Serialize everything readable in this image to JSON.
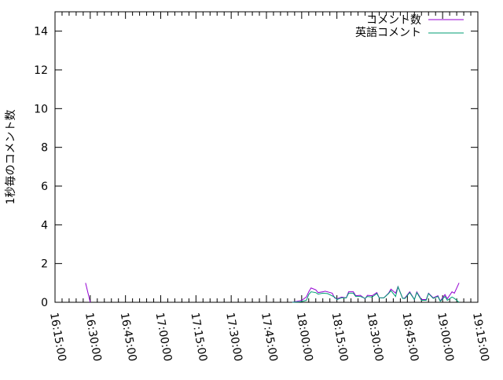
{
  "chart_data": {
    "type": "line",
    "title": "",
    "xlabel": "",
    "ylabel": "1秒毎のコメント数",
    "xlim": [
      "16:15:00",
      "19:15:00"
    ],
    "ylim": [
      0,
      15
    ],
    "x_ticks": [
      "16:15:00",
      "16:30:00",
      "16:45:00",
      "17:00:00",
      "17:15:00",
      "17:30:00",
      "17:45:00",
      "18:00:00",
      "18:15:00",
      "18:30:00",
      "18:45:00",
      "19:00:00",
      "19:15:00"
    ],
    "y_ticks": [
      0,
      2,
      4,
      6,
      8,
      10,
      12,
      14
    ],
    "grid": false,
    "legend_position": "top-right",
    "series": [
      {
        "name": "コメント数",
        "color": "#9400d3",
        "points": [
          [
            "16:28",
            1.0
          ],
          [
            "16:30",
            0
          ],
          [
            "17:56",
            0
          ],
          [
            "17:59",
            0.07
          ],
          [
            "18:00",
            0.1
          ],
          [
            "18:02",
            0.27
          ],
          [
            "18:03",
            0.54
          ],
          [
            "18:04",
            0.74
          ],
          [
            "18:06",
            0.64
          ],
          [
            "18:07",
            0.5
          ],
          [
            "18:09",
            0.54
          ],
          [
            "18:10",
            0.57
          ],
          [
            "18:11",
            0.54
          ],
          [
            "18:13",
            0.47
          ],
          [
            "18:14",
            0.23
          ],
          [
            "18:15",
            0.18
          ],
          [
            "18:17",
            0.27
          ],
          [
            "18:19",
            0.23
          ],
          [
            "18:20",
            0.54
          ],
          [
            "18:22",
            0.54
          ],
          [
            "18:23",
            0.34
          ],
          [
            "18:25",
            0.36
          ],
          [
            "18:27",
            0.18
          ],
          [
            "18:28",
            0.36
          ],
          [
            "18:30",
            0.34
          ],
          [
            "18:32",
            0.5
          ],
          [
            "18:33",
            0.23
          ],
          [
            "18:35",
            0.23
          ],
          [
            "18:37",
            0.47
          ],
          [
            "18:38",
            0.68
          ],
          [
            "18:40",
            0.47
          ],
          [
            "18:41",
            0.81
          ],
          [
            "18:43",
            0.2
          ],
          [
            "18:44",
            0.23
          ],
          [
            "18:46",
            0.54
          ],
          [
            "18:48",
            0.14
          ],
          [
            "18:49",
            0.54
          ],
          [
            "18:51",
            0.14
          ],
          [
            "18:53",
            0.14
          ],
          [
            "18:54",
            0.47
          ],
          [
            "18:56",
            0.23
          ],
          [
            "18:58",
            0.34
          ],
          [
            "18:59",
            0.07
          ],
          [
            "19:01",
            0.4
          ],
          [
            "19:02",
            0.18
          ],
          [
            "19:04",
            0.54
          ],
          [
            "19:05",
            0.47
          ],
          [
            "19:07",
            1.0
          ]
        ]
      },
      {
        "name": "英語コメント",
        "color": "#009e73",
        "points": [
          [
            "17:56",
            0
          ],
          [
            "17:59",
            0.02
          ],
          [
            "18:00",
            0.04
          ],
          [
            "18:02",
            0.1
          ],
          [
            "18:03",
            0.4
          ],
          [
            "18:04",
            0.54
          ],
          [
            "18:06",
            0.5
          ],
          [
            "18:07",
            0.42
          ],
          [
            "18:09",
            0.47
          ],
          [
            "18:11",
            0.45
          ],
          [
            "18:14",
            0.27
          ],
          [
            "18:15",
            0.14
          ],
          [
            "18:17",
            0.23
          ],
          [
            "18:19",
            0.23
          ],
          [
            "18:20",
            0.47
          ],
          [
            "18:22",
            0.47
          ],
          [
            "18:23",
            0.3
          ],
          [
            "18:25",
            0.3
          ],
          [
            "18:27",
            0.2
          ],
          [
            "18:28",
            0.3
          ],
          [
            "18:30",
            0.27
          ],
          [
            "18:32",
            0.45
          ],
          [
            "18:33",
            0.23
          ],
          [
            "18:35",
            0.23
          ],
          [
            "18:37",
            0.45
          ],
          [
            "18:38",
            0.6
          ],
          [
            "18:40",
            0.3
          ],
          [
            "18:41",
            0.8
          ],
          [
            "18:43",
            0.2
          ],
          [
            "18:44",
            0.2
          ],
          [
            "18:46",
            0.5
          ],
          [
            "18:48",
            0.14
          ],
          [
            "18:49",
            0.5
          ],
          [
            "18:51",
            0.1
          ],
          [
            "18:53",
            0.1
          ],
          [
            "18:54",
            0.45
          ],
          [
            "18:56",
            0.2
          ],
          [
            "18:58",
            0.3
          ],
          [
            "18:59",
            0.05
          ],
          [
            "19:01",
            0.3
          ],
          [
            "19:02",
            0.1
          ],
          [
            "19:04",
            0.27
          ],
          [
            "19:05",
            0.2
          ],
          [
            "19:07",
            0
          ]
        ]
      }
    ]
  }
}
